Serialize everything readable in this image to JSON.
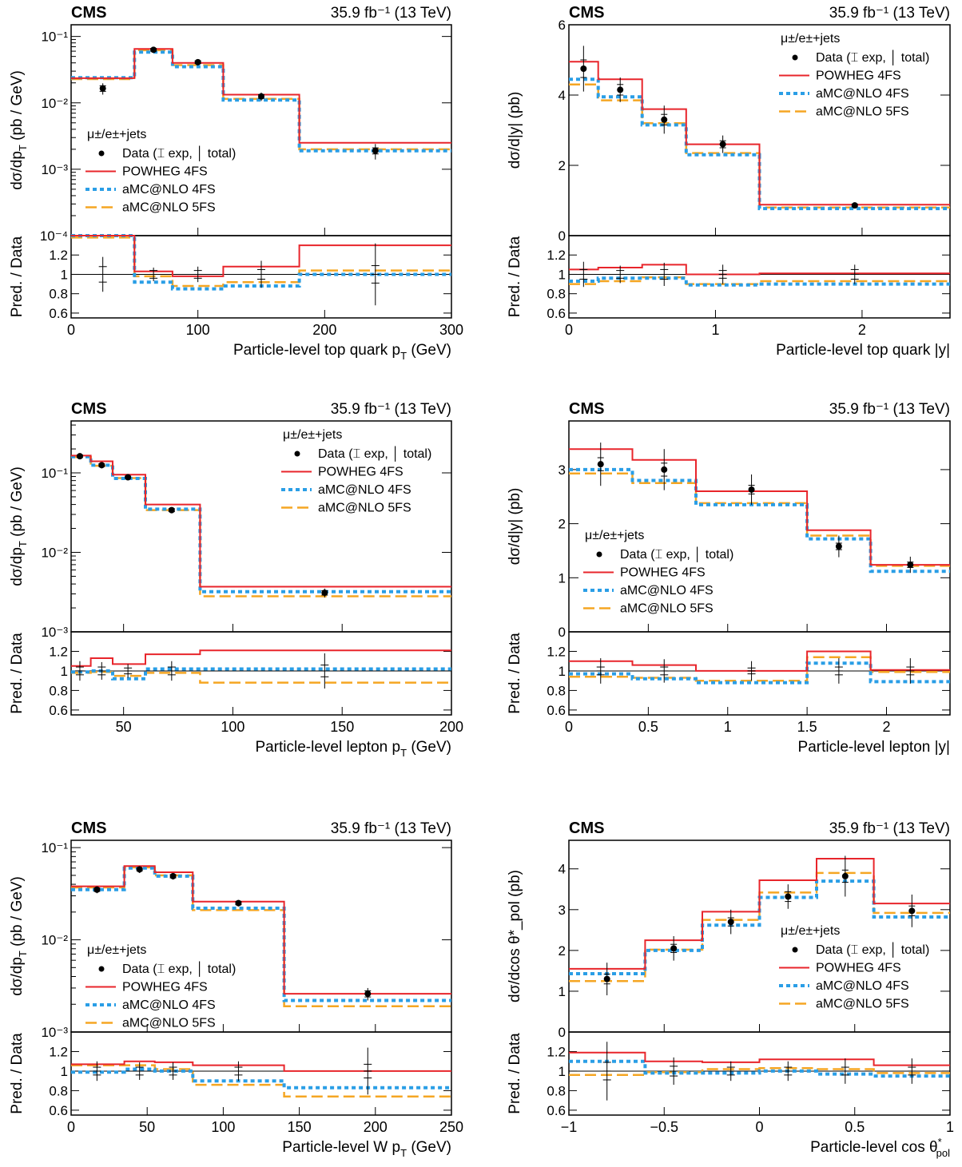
{
  "legend": {
    "channel": "μ±/e±+jets",
    "data": "Data (⌶ exp, │ total)",
    "powheg4fs": "POWHEG 4FS",
    "amc4fs": "aMC@NLO 4FS",
    "amc5fs": "aMC@NLO 5FS"
  },
  "colors": {
    "powheg4fs": "#e8252b",
    "amc4fs": "#2a9ee6",
    "amc5fs": "#f5a623",
    "data": "#000000"
  },
  "ratio_label": "Pred. / Data",
  "chart_data": [
    {
      "type": "line",
      "experiment": "CMS",
      "lumi": "35.9 fb⁻¹ (13 TeV)",
      "xlabel": "Particle-level top quark p_T (GeV)",
      "ylabel": "dσ/dp_T (pb / GeV)",
      "ylog": true,
      "ylim": [
        0.0001,
        0.15
      ],
      "yticks": [
        {
          "v": 0.0001,
          "t": "10⁻⁴"
        },
        {
          "v": 0.001,
          "t": "10⁻³"
        },
        {
          "v": 0.01,
          "t": "10⁻²"
        },
        {
          "v": 0.1,
          "t": "10⁻¹"
        }
      ],
      "xlim": [
        0,
        300
      ],
      "xticks": [
        {
          "v": 0,
          "t": "0"
        },
        {
          "v": 100,
          "t": "100"
        },
        {
          "v": 200,
          "t": "200"
        },
        {
          "v": 300,
          "t": "300"
        }
      ],
      "legend_pos": "mid-left",
      "edges": [
        0,
        50,
        80,
        120,
        180,
        300
      ],
      "data": {
        "x": [
          25,
          65,
          100,
          150,
          240
        ],
        "y": [
          0.0165,
          0.063,
          0.041,
          0.0125,
          0.0019
        ],
        "err_stat": [
          0.0016,
          0.003,
          0.002,
          0.0008,
          0.0002
        ],
        "err_total": [
          0.0032,
          0.006,
          0.0045,
          0.0018,
          0.0005
        ]
      },
      "series": [
        {
          "name": "POWHEG 4FS",
          "values": [
            0.0235,
            0.065,
            0.04,
            0.0133,
            0.0025
          ]
        },
        {
          "name": "aMC@NLO 4FS",
          "values": [
            0.024,
            0.058,
            0.035,
            0.011,
            0.0019
          ]
        },
        {
          "name": "aMC@NLO 5FS",
          "values": [
            0.0228,
            0.062,
            0.037,
            0.0115,
            0.002
          ]
        }
      ],
      "ratio": {
        "ylim": [
          0.55,
          1.4
        ],
        "yticks": [
          {
            "v": 0.6,
            "t": "0.6"
          },
          {
            "v": 0.8,
            "t": "0.8"
          },
          {
            "v": 1,
            "t": "1"
          },
          {
            "v": 1.2,
            "t": "1.2"
          }
        ],
        "series": [
          [
            1.42,
            1.03,
            0.98,
            1.08,
            1.3
          ],
          [
            1.41,
            0.92,
            0.85,
            0.88,
            1.0
          ],
          [
            1.38,
            0.98,
            0.88,
            0.92,
            1.04
          ]
        ],
        "data_err_stat": [
          0.08,
          0.04,
          0.04,
          0.05,
          0.09
        ],
        "data_err_total": [
          0.18,
          0.07,
          0.08,
          0.14,
          0.32
        ]
      }
    },
    {
      "type": "line",
      "experiment": "CMS",
      "lumi": "35.9 fb⁻¹ (13 TeV)",
      "xlabel": "Particle-level top quark |y|",
      "ylabel": "dσ/d|y| (pb)",
      "ylog": false,
      "ylim": [
        0,
        6
      ],
      "yticks": [
        {
          "v": 0,
          "t": "0"
        },
        {
          "v": 2,
          "t": "2"
        },
        {
          "v": 4,
          "t": "4"
        },
        {
          "v": 6,
          "t": "6"
        }
      ],
      "xlim": [
        0,
        2.6
      ],
      "xticks": [
        {
          "v": 0,
          "t": "0"
        },
        {
          "v": 1,
          "t": "1"
        },
        {
          "v": 2,
          "t": "2"
        }
      ],
      "legend_pos": "top-right",
      "edges": [
        0,
        0.2,
        0.5,
        0.8,
        1.3,
        2.6
      ],
      "data": {
        "x": [
          0.1,
          0.35,
          0.65,
          1.05,
          1.95
        ],
        "y": [
          4.75,
          4.15,
          3.3,
          2.6,
          0.86
        ],
        "err_stat": [
          0.25,
          0.15,
          0.15,
          0.1,
          0.04
        ],
        "err_total": [
          0.65,
          0.35,
          0.4,
          0.25,
          0.08
        ]
      },
      "series": [
        {
          "name": "POWHEG 4FS",
          "values": [
            4.95,
            4.45,
            3.6,
            2.6,
            0.88
          ]
        },
        {
          "name": "aMC@NLO 4FS",
          "values": [
            4.45,
            3.95,
            3.15,
            2.3,
            0.77
          ]
        },
        {
          "name": "aMC@NLO 5FS",
          "values": [
            4.3,
            3.85,
            3.2,
            2.35,
            0.8
          ]
        }
      ],
      "ratio": {
        "ylim": [
          0.55,
          1.4
        ],
        "yticks": [
          {
            "v": 0.6,
            "t": "0.6"
          },
          {
            "v": 0.8,
            "t": "0.8"
          },
          {
            "v": 1,
            "t": "1"
          },
          {
            "v": 1.2,
            "t": "1.2"
          }
        ],
        "series": [
          [
            1.05,
            1.07,
            1.1,
            1.0,
            1.01
          ],
          [
            0.93,
            0.96,
            0.96,
            0.89,
            0.9
          ],
          [
            0.9,
            0.93,
            0.97,
            0.9,
            0.93
          ]
        ],
        "data_err_stat": [
          0.05,
          0.04,
          0.05,
          0.04,
          0.05
        ],
        "data_err_total": [
          0.13,
          0.09,
          0.12,
          0.1,
          0.1
        ]
      }
    },
    {
      "type": "line",
      "experiment": "CMS",
      "lumi": "35.9 fb⁻¹ (13 TeV)",
      "xlabel": "Particle-level lepton p_T (GeV)",
      "ylabel": "dσ/dp_T (pb / GeV)",
      "ylog": true,
      "ylim": [
        0.001,
        0.45
      ],
      "yticks": [
        {
          "v": 0.001,
          "t": "10⁻³"
        },
        {
          "v": 0.01,
          "t": "10⁻²"
        },
        {
          "v": 0.1,
          "t": "10⁻¹"
        }
      ],
      "xlim": [
        26,
        200
      ],
      "xticks": [
        {
          "v": 50,
          "t": "50"
        },
        {
          "v": 100,
          "t": "100"
        },
        {
          "v": 150,
          "t": "150"
        },
        {
          "v": 200,
          "t": "200"
        }
      ],
      "legend_pos": "top-right",
      "edges": [
        26,
        35,
        45,
        60,
        85,
        200
      ],
      "data": {
        "x": [
          30,
          40,
          52,
          72,
          142
        ],
        "y": [
          0.162,
          0.125,
          0.088,
          0.034,
          0.0031
        ],
        "err_stat": [
          0.006,
          0.005,
          0.003,
          0.0015,
          0.0002
        ],
        "err_total": [
          0.014,
          0.011,
          0.007,
          0.003,
          0.0004
        ]
      },
      "series": [
        {
          "name": "POWHEG 4FS",
          "values": [
            0.165,
            0.14,
            0.095,
            0.04,
            0.0037
          ]
        },
        {
          "name": "aMC@NLO 4FS",
          "values": [
            0.16,
            0.125,
            0.085,
            0.035,
            0.0032
          ]
        },
        {
          "name": "aMC@NLO 5FS",
          "values": [
            0.158,
            0.123,
            0.086,
            0.034,
            0.0028
          ]
        }
      ],
      "ratio": {
        "ylim": [
          0.55,
          1.4
        ],
        "yticks": [
          {
            "v": 0.6,
            "t": "0.6"
          },
          {
            "v": 0.8,
            "t": "0.8"
          },
          {
            "v": 1,
            "t": "1"
          },
          {
            "v": 1.2,
            "t": "1.2"
          }
        ],
        "series": [
          [
            1.05,
            1.13,
            1.07,
            1.17,
            1.21
          ],
          [
            0.99,
            1.0,
            0.92,
            1.02,
            1.02
          ],
          [
            0.98,
            0.99,
            0.95,
            0.98,
            0.88
          ]
        ],
        "data_err_stat": [
          0.04,
          0.04,
          0.03,
          0.04,
          0.06
        ],
        "data_err_total": [
          0.1,
          0.09,
          0.07,
          0.1,
          0.18
        ]
      }
    },
    {
      "type": "line",
      "experiment": "CMS",
      "lumi": "35.9 fb⁻¹ (13 TeV)",
      "xlabel": "Particle-level lepton |y|",
      "ylabel": "dσ/d|y| (pb)",
      "ylog": false,
      "ylim": [
        0,
        3.9
      ],
      "yticks": [
        {
          "v": 0,
          "t": "0"
        },
        {
          "v": 1,
          "t": "1"
        },
        {
          "v": 2,
          "t": "2"
        },
        {
          "v": 3,
          "t": "3"
        }
      ],
      "xlim": [
        0,
        2.4
      ],
      "xticks": [
        {
          "v": 0,
          "t": "0"
        },
        {
          "v": 0.5,
          "t": "0.5"
        },
        {
          "v": 1,
          "t": "1"
        },
        {
          "v": 1.5,
          "t": "1.5"
        },
        {
          "v": 2,
          "t": "2"
        }
      ],
      "legend_pos": "mid-left",
      "edges": [
        0,
        0.4,
        0.8,
        1.5,
        1.9,
        2.4
      ],
      "data": {
        "x": [
          0.2,
          0.6,
          1.15,
          1.7,
          2.15
        ],
        "y": [
          3.1,
          3.0,
          2.63,
          1.58,
          1.24
        ],
        "err_stat": [
          0.12,
          0.12,
          0.08,
          0.06,
          0.05
        ],
        "err_total": [
          0.4,
          0.38,
          0.28,
          0.2,
          0.15
        ]
      },
      "series": [
        {
          "name": "POWHEG 4FS",
          "values": [
            3.38,
            3.18,
            2.6,
            1.88,
            1.24
          ]
        },
        {
          "name": "aMC@NLO 4FS",
          "values": [
            3.0,
            2.8,
            2.35,
            1.72,
            1.12
          ]
        },
        {
          "name": "aMC@NLO 5FS",
          "values": [
            2.93,
            2.75,
            2.38,
            1.78,
            1.22
          ]
        }
      ],
      "ratio": {
        "ylim": [
          0.55,
          1.4
        ],
        "yticks": [
          {
            "v": 0.6,
            "t": "0.6"
          },
          {
            "v": 0.8,
            "t": "0.8"
          },
          {
            "v": 1,
            "t": "1"
          },
          {
            "v": 1.2,
            "t": "1.2"
          }
        ],
        "series": [
          [
            1.1,
            1.06,
            1.0,
            1.2,
            1.01
          ],
          [
            0.97,
            0.92,
            0.88,
            1.08,
            0.89
          ],
          [
            0.94,
            0.93,
            0.9,
            1.14,
            0.99
          ]
        ],
        "data_err_stat": [
          0.04,
          0.04,
          0.03,
          0.04,
          0.04
        ],
        "data_err_total": [
          0.13,
          0.12,
          0.1,
          0.13,
          0.13
        ]
      }
    },
    {
      "type": "line",
      "experiment": "CMS",
      "lumi": "35.9 fb⁻¹ (13 TeV)",
      "xlabel": "Particle-level W p_T (GeV)",
      "ylabel": "dσ/dp_T (pb / GeV)",
      "ylog": true,
      "ylim": [
        0.001,
        0.12
      ],
      "yticks": [
        {
          "v": 0.001,
          "t": "10⁻³"
        },
        {
          "v": 0.01,
          "t": "10⁻²"
        },
        {
          "v": 0.1,
          "t": "10⁻¹"
        }
      ],
      "xlim": [
        0,
        250
      ],
      "xticks": [
        {
          "v": 0,
          "t": "0"
        },
        {
          "v": 50,
          "t": "50"
        },
        {
          "v": 100,
          "t": "100"
        },
        {
          "v": 150,
          "t": "150"
        },
        {
          "v": 200,
          "t": "200"
        },
        {
          "v": 250,
          "t": "250"
        }
      ],
      "legend_pos": "mid-left",
      "edges": [
        0,
        35,
        55,
        80,
        140,
        250
      ],
      "data": {
        "x": [
          17,
          45,
          67,
          110,
          195
        ],
        "y": [
          0.035,
          0.058,
          0.049,
          0.025,
          0.0026
        ],
        "err_stat": [
          0.0015,
          0.002,
          0.002,
          0.001,
          0.0002
        ],
        "err_total": [
          0.003,
          0.005,
          0.004,
          0.002,
          0.0004
        ]
      },
      "series": [
        {
          "name": "POWHEG 4FS",
          "values": [
            0.038,
            0.063,
            0.054,
            0.026,
            0.0026
          ]
        },
        {
          "name": "aMC@NLO 4FS",
          "values": [
            0.035,
            0.06,
            0.049,
            0.022,
            0.0022
          ]
        },
        {
          "name": "aMC@NLO 5FS",
          "values": [
            0.037,
            0.061,
            0.05,
            0.021,
            0.0019
          ]
        }
      ],
      "ratio": {
        "ylim": [
          0.55,
          1.4
        ],
        "yticks": [
          {
            "v": 0.6,
            "t": "0.6"
          },
          {
            "v": 0.8,
            "t": "0.8"
          },
          {
            "v": 1,
            "t": "1"
          },
          {
            "v": 1.2,
            "t": "1.2"
          }
        ],
        "series": [
          [
            1.07,
            1.1,
            1.09,
            1.06,
            1.0
          ],
          [
            0.99,
            1.02,
            1.0,
            0.9,
            0.83
          ],
          [
            1.06,
            1.06,
            1.02,
            0.86,
            0.74
          ]
        ],
        "data_err_stat": [
          0.04,
          0.04,
          0.04,
          0.04,
          0.07
        ],
        "data_err_total": [
          0.1,
          0.09,
          0.09,
          0.1,
          0.24
        ]
      }
    },
    {
      "type": "line",
      "experiment": "CMS",
      "lumi": "35.9 fb⁻¹ (13 TeV)",
      "xlabel": "Particle-level cos θ*_pol",
      "ylabel": "dσ/dcos θ*_pol (pb)",
      "ylog": false,
      "ylim": [
        0,
        4.7
      ],
      "yticks": [
        {
          "v": 0,
          "t": "0"
        },
        {
          "v": 1,
          "t": "1"
        },
        {
          "v": 2,
          "t": "2"
        },
        {
          "v": 3,
          "t": "3"
        },
        {
          "v": 4,
          "t": "4"
        }
      ],
      "xlim": [
        -1,
        1
      ],
      "xticks": [
        {
          "v": -1,
          "t": "−1"
        },
        {
          "v": -0.5,
          "t": "−0.5"
        },
        {
          "v": 0,
          "t": "0"
        },
        {
          "v": 0.5,
          "t": "0.5"
        },
        {
          "v": 1,
          "t": "1"
        }
      ],
      "legend_pos": "mid-right",
      "edges": [
        -1,
        -0.6,
        -0.3,
        0,
        0.3,
        0.6,
        1
      ],
      "data": {
        "x": [
          -0.8,
          -0.45,
          -0.15,
          0.15,
          0.45,
          0.8
        ],
        "y": [
          1.3,
          2.05,
          2.7,
          3.32,
          3.82,
          2.97
        ],
        "err_stat": [
          0.12,
          0.1,
          0.1,
          0.12,
          0.15,
          0.12
        ],
        "err_total": [
          0.4,
          0.3,
          0.3,
          0.3,
          0.5,
          0.4
        ]
      },
      "series": [
        {
          "name": "POWHEG 4FS",
          "values": [
            1.55,
            2.25,
            2.95,
            3.72,
            4.25,
            3.15
          ]
        },
        {
          "name": "aMC@NLO 4FS",
          "values": [
            1.43,
            2.0,
            2.62,
            3.3,
            3.7,
            2.82
          ]
        },
        {
          "name": "aMC@NLO 5FS",
          "values": [
            1.25,
            2.02,
            2.75,
            3.42,
            3.9,
            2.92
          ]
        }
      ],
      "ratio": {
        "ylim": [
          0.55,
          1.4
        ],
        "yticks": [
          {
            "v": 0.6,
            "t": "0.6"
          },
          {
            "v": 0.8,
            "t": "0.8"
          },
          {
            "v": 1,
            "t": "1"
          },
          {
            "v": 1.2,
            "t": "1.2"
          }
        ],
        "series": [
          [
            1.19,
            1.1,
            1.09,
            1.12,
            1.12,
            1.06
          ],
          [
            1.1,
            0.98,
            0.98,
            1.0,
            0.97,
            0.95
          ],
          [
            0.96,
            0.99,
            1.02,
            1.03,
            1.02,
            0.98
          ]
        ],
        "data_err_stat": [
          0.09,
          0.05,
          0.04,
          0.04,
          0.04,
          0.04
        ],
        "data_err_total": [
          0.3,
          0.14,
          0.1,
          0.1,
          0.13,
          0.13
        ]
      }
    }
  ]
}
